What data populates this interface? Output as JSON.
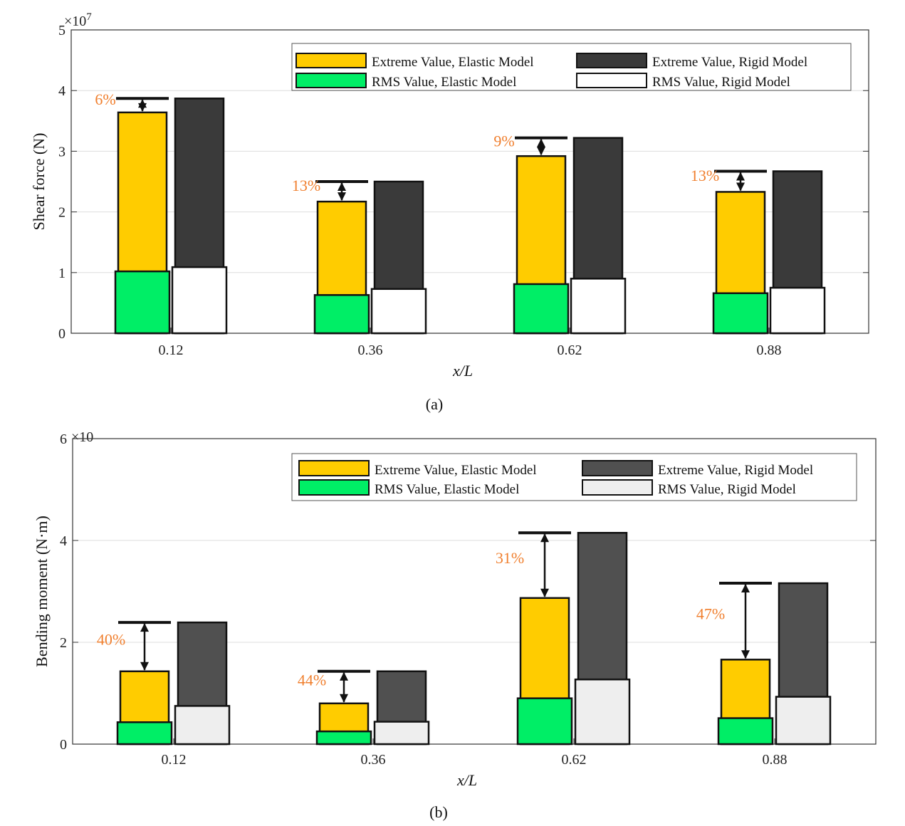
{
  "colors": {
    "extreme_elastic": "#FFCC00",
    "extreme_rigid_a": "#3A3A3A",
    "extreme_rigid_b": "#505050",
    "rms_elastic": "#00EE66",
    "rms_rigid_a": "#FFFFFF",
    "rms_rigid_b": "#EEEEEE",
    "annotation": "#F07F2E",
    "grid": "#DDDDDD"
  },
  "chart_data": [
    {
      "type": "bar",
      "panel_label": "(a)",
      "ylabel": "Shear force (N)",
      "xlabel": "x/L",
      "exponent_label": "×10",
      "exponent_power": "7",
      "ylim": [
        0,
        5
      ],
      "yticks": [
        "0",
        "1",
        "2",
        "3",
        "4",
        "5"
      ],
      "grid": true,
      "legend_position": "top-right",
      "categories": [
        "0.12",
        "0.36",
        "0.62",
        "0.88"
      ],
      "series": [
        {
          "name": "Extreme Value, Elastic Model",
          "values": [
            3.64,
            2.17,
            2.92,
            2.33
          ]
        },
        {
          "name": "Extreme Value, Rigid Model",
          "values": [
            3.87,
            2.5,
            3.22,
            2.67
          ]
        },
        {
          "name": "RMS Value, Elastic Model",
          "values": [
            1.02,
            0.63,
            0.81,
            0.66
          ]
        },
        {
          "name": "RMS Value, Rigid Model",
          "values": [
            1.09,
            0.73,
            0.9,
            0.75
          ]
        }
      ],
      "annotations": [
        "6%",
        "13%",
        "9%",
        "13%"
      ]
    },
    {
      "type": "bar",
      "panel_label": "(b)",
      "ylabel": "Bending moment (N·m)",
      "xlabel": "x/L",
      "exponent_label": "×10",
      "exponent_power": "",
      "ylim": [
        0,
        6
      ],
      "yticks": [
        "0",
        "2",
        "4",
        "6"
      ],
      "grid": true,
      "legend_position": "top-right",
      "categories": [
        "0.12",
        "0.36",
        "0.62",
        "0.88"
      ],
      "series": [
        {
          "name": "Extreme Value, Elastic Model",
          "values": [
            1.43,
            0.8,
            2.87,
            1.66
          ]
        },
        {
          "name": "Extreme Value, Rigid Model",
          "values": [
            2.39,
            1.43,
            4.15,
            3.16
          ]
        },
        {
          "name": "RMS Value, Elastic Model",
          "values": [
            0.43,
            0.25,
            0.9,
            0.51
          ]
        },
        {
          "name": "RMS Value, Rigid Model",
          "values": [
            0.75,
            0.44,
            1.27,
            0.93
          ]
        }
      ],
      "annotations": [
        "40%",
        "44%",
        "31%",
        "47%"
      ]
    }
  ]
}
